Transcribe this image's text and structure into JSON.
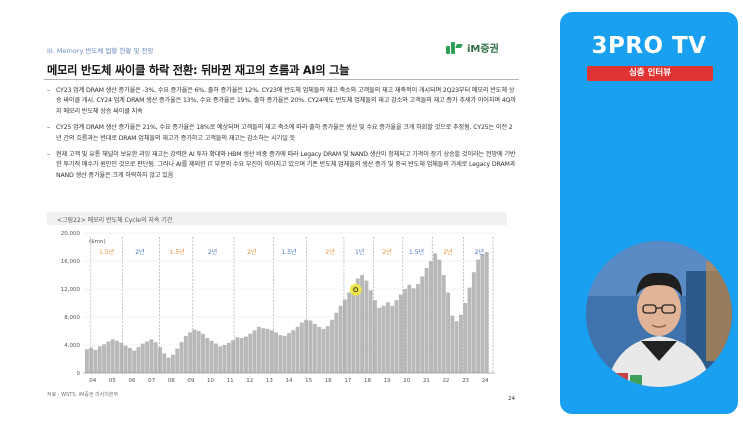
{
  "slide": {
    "section_tag": "III. Memory 반도체 업황 현황 및 전망",
    "brand": {
      "name": "iM증권",
      "accent": "#2f9e57"
    },
    "title": "메모리 반도체 싸이클 하락 전환: 뒤바뀐 재고의 흐름과 AI의 그늘",
    "bullets": [
      "CY23 업계 DRAM 생산 증가율은 -3%, 수요 증가율은 6%, 출하 증가율은 12%. CY23에 반도체 업체들의 재고 축소와 고객들의 재고 재축적이 개시되며 2Q23부터 메모리 반도체 상승 싸이클 개시. CY24 업계 DRAM 생산 증가율은 13%, 수요 증가율은 19%, 출하 증가율은 20%. CY24에도 반도체 업체들의 재고 감소와 고객들의 재고 증가 추세가 이어지며 4Q까지 메모리 반도체 상승 싸이클 지속",
      "CY25 업계 DRAM 생산 증가율은 21%, 수요 증가율은 18%로 예상되며 고객들의 재고 축소에 따라 출하 증가율은 생산 및 수요 증가율을 크게 하회할 것으로 추정됨. CY25는 이전 2년 간의 흐름과는 반대로 DRAM 업체들의 재고가 증가하고 고객들의 재고는 감소하는 시기일 듯",
      "현재 고객 및 유통 채널이 보유한 과잉 재고는 강력한 AI 투자 확대와 HBM 생산 비중 증가에 따라 Legacy DRAM 및 NAND 생산이 정체되고 가격이 장기 상승할 것이라는 전망에 기반한 투기적 매수가 원인인 것으로 판단됨. 그러나 AI를 제외한 IT 부문의 수요 부진이 이어지고 있으며 기존 반도체 업체들의 생산 증가 및 중국 반도체 업체들의 가세로 Legacy DRAM과 NAND 생산 증가율은 크게 하락하지 않고 있음"
    ],
    "chart_caption": "<그림22> 메모리 반도체 Cycle의 지속 기간",
    "source": "자료 : WSTS, iM증권 리서치본부",
    "page_number": "24"
  },
  "chart_data": {
    "type": "bar",
    "unit_label": "($mn)",
    "x_ticks": [
      "04",
      "05",
      "06",
      "07",
      "08",
      "09",
      "10",
      "11",
      "12",
      "13",
      "14",
      "15",
      "16",
      "17",
      "18",
      "19",
      "20",
      "21",
      "22",
      "23",
      "24"
    ],
    "y_ticks": [
      0,
      4000,
      8000,
      12000,
      16000,
      20000
    ],
    "y_tick_labels": [
      "0",
      "4,000",
      "8,000",
      "12,000",
      "16,000",
      "20,000"
    ],
    "ylim": [
      0,
      20000
    ],
    "x_range": [
      2004,
      2025
    ],
    "series": [
      {
        "values": [
          3400,
          3600,
          3300,
          3800,
          4100,
          4500,
          4800,
          4600,
          4300,
          3900,
          3600,
          3200,
          3700,
          4200,
          4500,
          4800,
          4400,
          3700,
          2800,
          2200,
          2600,
          3500,
          4400,
          5300,
          5800,
          6200,
          6000,
          5600,
          5000,
          4600,
          4200,
          3800,
          4000,
          4300,
          4700,
          5100,
          5000,
          5200,
          5600,
          6100,
          6600,
          6400,
          6300,
          6100,
          5800,
          5400,
          5300,
          5700,
          6100,
          6600,
          7200,
          7600,
          7500,
          7000,
          6600,
          6300,
          6700,
          7600,
          8600,
          9600,
          10500,
          11500,
          12500,
          13500,
          14000,
          13200,
          11800,
          10400,
          9300,
          9600,
          10100,
          9600,
          10400,
          11200,
          12000,
          12600,
          12100,
          12700,
          13800,
          15000,
          16000,
          17100,
          16200,
          14000,
          11500,
          8200,
          7400,
          8300,
          10000,
          12200,
          14400,
          16200,
          17000,
          17300
        ]
      }
    ],
    "cycle_labels": [
      {
        "text": "1.5년",
        "x": 2005.2,
        "color": "#e8913a"
      },
      {
        "text": "2년",
        "x": 2006.9,
        "color": "#4a78c2"
      },
      {
        "text": "1.5년",
        "x": 2008.8,
        "color": "#e8913a"
      },
      {
        "text": "2년",
        "x": 2010.6,
        "color": "#4a78c2"
      },
      {
        "text": "2년",
        "x": 2012.6,
        "color": "#e8913a"
      },
      {
        "text": "1.5년",
        "x": 2014.5,
        "color": "#4a78c2"
      },
      {
        "text": "2년",
        "x": 2016.6,
        "color": "#e8913a"
      },
      {
        "text": "1년",
        "x": 2018.1,
        "color": "#4a78c2"
      },
      {
        "text": "2년",
        "x": 2019.5,
        "color": "#e8913a"
      },
      {
        "text": "1.5년",
        "x": 2021.0,
        "color": "#4a78c2"
      },
      {
        "text": "2년",
        "x": 2022.6,
        "color": "#e8913a"
      },
      {
        "text": "2년",
        "x": 2024.2,
        "color": "#4a78c2"
      }
    ],
    "cycle_boundaries": [
      2004.4,
      2006.0,
      2007.9,
      2009.6,
      2011.7,
      2013.7,
      2015.4,
      2017.3,
      2018.8,
      2020.3,
      2021.8,
      2023.4,
      2024.9
    ]
  },
  "broadcast": {
    "logo": "3PRO TV",
    "subtitle": "심층 인터뷰",
    "colors": {
      "panel": "#1aa0f0",
      "badge": "#e03434"
    }
  }
}
